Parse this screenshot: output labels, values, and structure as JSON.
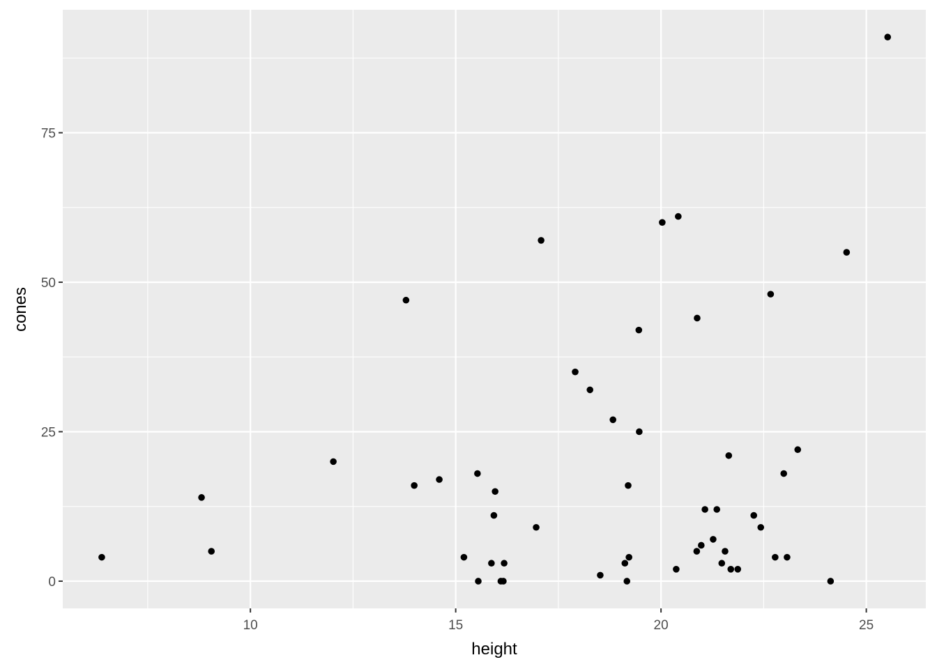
{
  "chart_data": {
    "type": "scatter",
    "title": "",
    "xlabel": "height",
    "ylabel": "cones",
    "xlim": [
      5.43,
      26.45
    ],
    "ylim": [
      -4.55,
      95.57
    ],
    "x_ticks": [
      10,
      15,
      20,
      25
    ],
    "x_tick_labels": [
      "10",
      "15",
      "20",
      "25"
    ],
    "y_ticks": [
      0,
      25,
      50,
      75
    ],
    "y_tick_labels": [
      "0",
      "25",
      "50",
      "75"
    ],
    "grid": true,
    "legend": "none",
    "colors": {
      "panel": "#EBEBEB",
      "grid": "#FFFFFF",
      "point": "#000000"
    },
    "points": [
      [
        6.38,
        4
      ],
      [
        8.81,
        14
      ],
      [
        9.05,
        5
      ],
      [
        12.02,
        20
      ],
      [
        13.79,
        47
      ],
      [
        13.99,
        16
      ],
      [
        14.6,
        17
      ],
      [
        15.2,
        4
      ],
      [
        15.53,
        18
      ],
      [
        15.55,
        0
      ],
      [
        15.87,
        3
      ],
      [
        15.93,
        11
      ],
      [
        15.96,
        15
      ],
      [
        16.1,
        0
      ],
      [
        16.16,
        0
      ],
      [
        16.18,
        3
      ],
      [
        16.96,
        9
      ],
      [
        17.08,
        57
      ],
      [
        17.91,
        35
      ],
      [
        18.27,
        32
      ],
      [
        18.52,
        1
      ],
      [
        18.83,
        27
      ],
      [
        19.12,
        3
      ],
      [
        19.17,
        0
      ],
      [
        19.2,
        16
      ],
      [
        19.22,
        4
      ],
      [
        19.46,
        42
      ],
      [
        19.47,
        25
      ],
      [
        20.03,
        60
      ],
      [
        20.37,
        2
      ],
      [
        20.42,
        61
      ],
      [
        20.87,
        5
      ],
      [
        20.88,
        44
      ],
      [
        20.98,
        6
      ],
      [
        21.07,
        12
      ],
      [
        21.27,
        7
      ],
      [
        21.36,
        12
      ],
      [
        21.48,
        3
      ],
      [
        21.56,
        5
      ],
      [
        21.65,
        21
      ],
      [
        21.7,
        2
      ],
      [
        21.87,
        2
      ],
      [
        22.26,
        11
      ],
      [
        22.43,
        9
      ],
      [
        22.67,
        48
      ],
      [
        22.78,
        4
      ],
      [
        22.99,
        18
      ],
      [
        23.07,
        4
      ],
      [
        23.33,
        22
      ],
      [
        24.13,
        0
      ],
      [
        24.52,
        55
      ],
      [
        25.52,
        91
      ]
    ]
  }
}
